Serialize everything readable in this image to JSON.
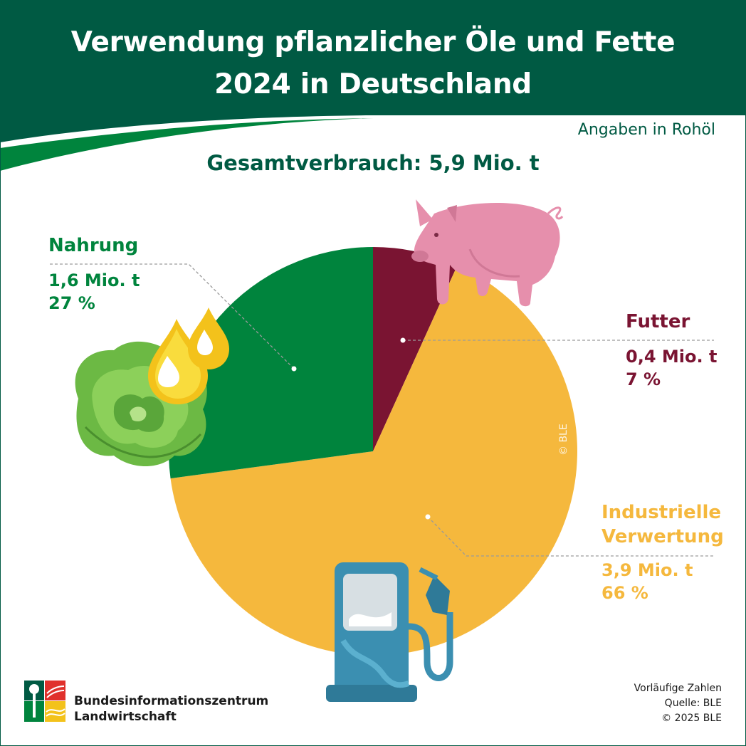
{
  "header": {
    "title_line1": "Verwendung pflanzlicher Öle und Fette",
    "title_line2": "2024 in Deutschland"
  },
  "unit_note": "Angaben in Rohöl",
  "total_label": "Gesamtverbrauch: 5,9 Mio. t",
  "chart_data": {
    "type": "pie",
    "unit": "Mio. t",
    "slices": [
      {
        "label": "Futter",
        "value": 0.4,
        "value_label": "0,4 Mio. t",
        "percent": 7,
        "percent_label": "7 %",
        "color": "#7a1432"
      },
      {
        "label": "Industrielle Verwertung",
        "value": 3.9,
        "value_label": "3,9 Mio. t",
        "percent": 66,
        "percent_label": "66 %",
        "color": "#f5b83d"
      },
      {
        "label": "Nahrung",
        "value": 1.6,
        "value_label": "1,6 Mio. t",
        "percent": 27,
        "percent_label": "27 %",
        "color": "#00843d"
      }
    ]
  },
  "labels": {
    "nahrung": {
      "name": "Nahrung",
      "value": "1,6 Mio. t",
      "percent": "27 %"
    },
    "futter": {
      "name": "Futter",
      "value": "0,4 Mio. t",
      "percent": "7 %"
    },
    "industrie": {
      "name_line1": "Industrielle",
      "name_line2": "Verwertung",
      "value": "3,9 Mio. t",
      "percent": "66 %"
    }
  },
  "illustrations": [
    "pig-icon",
    "lettuce-icon",
    "oil-drops-icon",
    "fuel-pump-icon"
  ],
  "watermark": "© BLE",
  "footer": {
    "org_line1": "Bundesinformationszentrum",
    "org_line2": "Landwirtschaft",
    "note_line1": "Vorläufige Zahlen",
    "note_line2": "Quelle: BLE",
    "note_line3": "© 2025 BLE"
  },
  "colors": {
    "header_green": "#005a43",
    "accent_green": "#00843d",
    "futter": "#7a1432",
    "industrie": "#f5b83d"
  }
}
